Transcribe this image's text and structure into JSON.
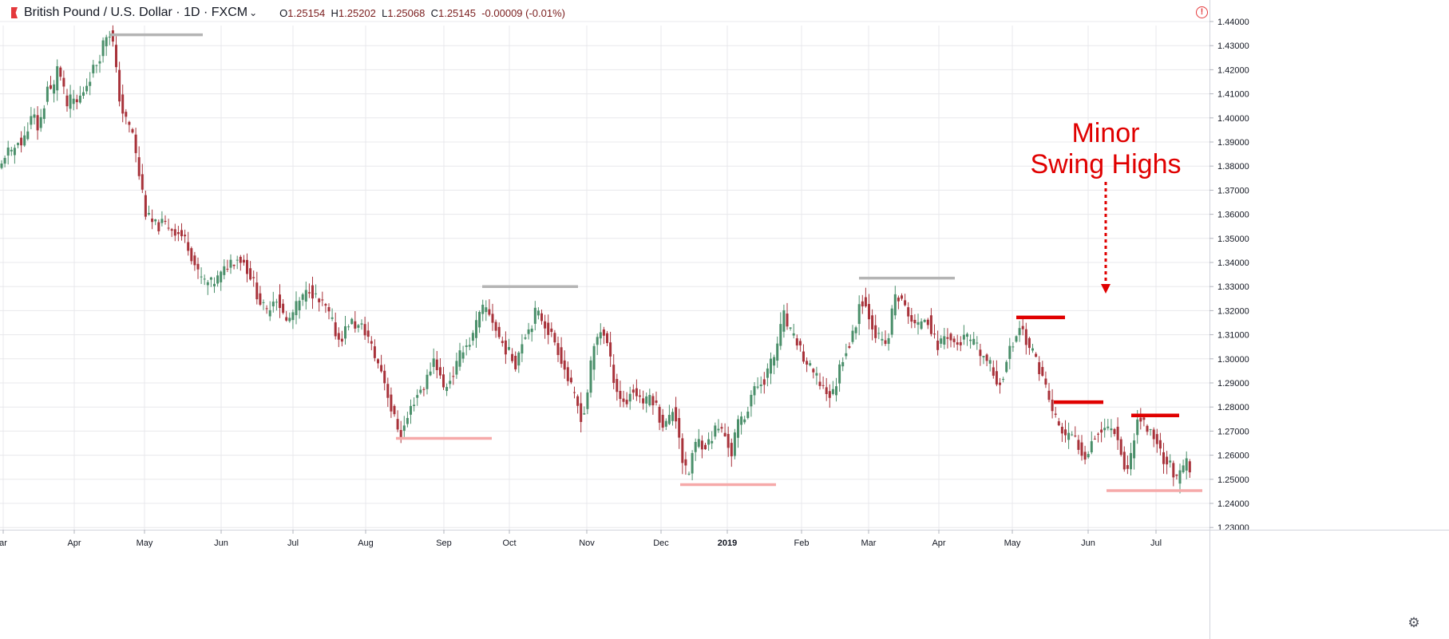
{
  "header": {
    "symbol": "British Pound / U.S. Dollar · 1D · FXCM",
    "open_label": "O",
    "open": "1.25154",
    "high_label": "H",
    "high": "1.25202",
    "low_label": "L",
    "low": "1.25068",
    "close_label": "C",
    "close": "1.25145",
    "change": "-0.00009 (-0.01%)"
  },
  "annotation": {
    "line1": "Minor",
    "line2": "Swing Highs"
  },
  "colors": {
    "up": "#4a8f6a",
    "down": "#a8323a",
    "grid": "#e8e8ec",
    "major_level": "#b4b4b4",
    "support_level": "#f6a9a9",
    "minor_high": "#e00000",
    "text": "#131722"
  },
  "chart_data": {
    "type": "candlestick",
    "title": "British Pound / U.S. Dollar · 1D · FXCM",
    "ylim": [
      1.226,
      1.445
    ],
    "y_ticks": [
      "1.23000",
      "1.24000",
      "1.25000",
      "1.26000",
      "1.27000",
      "1.28000",
      "1.29000",
      "1.30000",
      "1.31000",
      "1.32000",
      "1.33000",
      "1.34000",
      "1.35000",
      "1.36000",
      "1.37000",
      "1.38000",
      "1.39000",
      "1.40000",
      "1.41000",
      "1.42000",
      "1.43000",
      "1.44000"
    ],
    "x_ticks": [
      "ar",
      "Apr",
      "May",
      "Jun",
      "Jul",
      "Aug",
      "Sep",
      "Oct",
      "Nov",
      "Dec",
      "2019",
      "Feb",
      "Mar",
      "Apr",
      "May",
      "Jun",
      "Jul"
    ],
    "grid": true,
    "path_points": [
      [
        0,
        1.378
      ],
      [
        8,
        1.387
      ],
      [
        15,
        1.384
      ],
      [
        22,
        1.392
      ],
      [
        28,
        1.388
      ],
      [
        35,
        1.397
      ],
      [
        42,
        1.401
      ],
      [
        48,
        1.395
      ],
      [
        55,
        1.405
      ],
      [
        60,
        1.414
      ],
      [
        66,
        1.409
      ],
      [
        72,
        1.423
      ],
      [
        78,
        1.413
      ],
      [
        84,
        1.405
      ],
      [
        90,
        1.408
      ],
      [
        96,
        1.406
      ],
      [
        104,
        1.411
      ],
      [
        112,
        1.417
      ],
      [
        118,
        1.421
      ],
      [
        124,
        1.425
      ],
      [
        130,
        1.432
      ],
      [
        136,
        1.437
      ],
      [
        142,
        1.43
      ],
      [
        148,
        1.411
      ],
      [
        154,
        1.402
      ],
      [
        160,
        1.397
      ],
      [
        166,
        1.394
      ],
      [
        172,
        1.38
      ],
      [
        178,
        1.37
      ],
      [
        182,
        1.361
      ],
      [
        188,
        1.357
      ],
      [
        196,
        1.355
      ],
      [
        204,
        1.356
      ],
      [
        212,
        1.355
      ],
      [
        220,
        1.353
      ],
      [
        228,
        1.351
      ],
      [
        236,
        1.347
      ],
      [
        242,
        1.341
      ],
      [
        248,
        1.335
      ],
      [
        256,
        1.332
      ],
      [
        264,
        1.331
      ],
      [
        272,
        1.333
      ],
      [
        280,
        1.336
      ],
      [
        286,
        1.34
      ],
      [
        292,
        1.341
      ],
      [
        298,
        1.342
      ],
      [
        304,
        1.341
      ],
      [
        310,
        1.337
      ],
      [
        316,
        1.333
      ],
      [
        322,
        1.327
      ],
      [
        328,
        1.322
      ],
      [
        334,
        1.319
      ],
      [
        340,
        1.324
      ],
      [
        346,
        1.326
      ],
      [
        352,
        1.321
      ],
      [
        358,
        1.315
      ],
      [
        364,
        1.317
      ],
      [
        370,
        1.321
      ],
      [
        376,
        1.324
      ],
      [
        382,
        1.326
      ],
      [
        388,
        1.33
      ],
      [
        394,
        1.326
      ],
      [
        400,
        1.323
      ],
      [
        406,
        1.322
      ],
      [
        412,
        1.318
      ],
      [
        418,
        1.313
      ],
      [
        424,
        1.308
      ],
      [
        430,
        1.31
      ],
      [
        436,
        1.315
      ],
      [
        442,
        1.315
      ],
      [
        448,
        1.313
      ],
      [
        454,
        1.313
      ],
      [
        460,
        1.31
      ],
      [
        466,
        1.304
      ],
      [
        472,
        1.299
      ],
      [
        478,
        1.295
      ],
      [
        484,
        1.288
      ],
      [
        490,
        1.279
      ],
      [
        496,
        1.273
      ],
      [
        502,
        1.269
      ],
      [
        508,
        1.273
      ],
      [
        514,
        1.279
      ],
      [
        520,
        1.284
      ],
      [
        526,
        1.287
      ],
      [
        532,
        1.289
      ],
      [
        538,
        1.295
      ],
      [
        544,
        1.301
      ],
      [
        550,
        1.294
      ],
      [
        556,
        1.287
      ],
      [
        562,
        1.291
      ],
      [
        568,
        1.294
      ],
      [
        574,
        1.299
      ],
      [
        580,
        1.305
      ],
      [
        586,
        1.306
      ],
      [
        592,
        1.309
      ],
      [
        598,
        1.316
      ],
      [
        604,
        1.32
      ],
      [
        610,
        1.321
      ],
      [
        616,
        1.317
      ],
      [
        622,
        1.311
      ],
      [
        628,
        1.307
      ],
      [
        634,
        1.304
      ],
      [
        640,
        1.301
      ],
      [
        646,
        1.298
      ],
      [
        652,
        1.306
      ],
      [
        658,
        1.311
      ],
      [
        664,
        1.313
      ],
      [
        670,
        1.319
      ],
      [
        676,
        1.318
      ],
      [
        682,
        1.315
      ],
      [
        688,
        1.311
      ],
      [
        694,
        1.308
      ],
      [
        700,
        1.303
      ],
      [
        706,
        1.297
      ],
      [
        712,
        1.291
      ],
      [
        718,
        1.285
      ],
      [
        724,
        1.28
      ],
      [
        730,
        1.274
      ],
      [
        736,
        1.287
      ],
      [
        742,
        1.302
      ],
      [
        748,
        1.309
      ],
      [
        754,
        1.313
      ],
      [
        760,
        1.307
      ],
      [
        766,
        1.296
      ],
      [
        772,
        1.288
      ],
      [
        778,
        1.283
      ],
      [
        784,
        1.281
      ],
      [
        790,
        1.287
      ],
      [
        796,
        1.286
      ],
      [
        802,
        1.284
      ],
      [
        808,
        1.281
      ],
      [
        814,
        1.285
      ],
      [
        820,
        1.282
      ],
      [
        826,
        1.276
      ],
      [
        832,
        1.272
      ],
      [
        838,
        1.275
      ],
      [
        844,
        1.28
      ],
      [
        850,
        1.27
      ],
      [
        856,
        1.255
      ],
      [
        862,
        1.251
      ],
      [
        868,
        1.262
      ],
      [
        874,
        1.266
      ],
      [
        880,
        1.265
      ],
      [
        886,
        1.264
      ],
      [
        892,
        1.268
      ],
      [
        898,
        1.272
      ],
      [
        904,
        1.27
      ],
      [
        910,
        1.267
      ],
      [
        916,
        1.26
      ],
      [
        922,
        1.271
      ],
      [
        928,
        1.275
      ],
      [
        934,
        1.276
      ],
      [
        940,
        1.285
      ],
      [
        946,
        1.287
      ],
      [
        952,
        1.29
      ],
      [
        958,
        1.292
      ],
      [
        964,
        1.297
      ],
      [
        970,
        1.301
      ],
      [
        976,
        1.31
      ],
      [
        982,
        1.318
      ],
      [
        988,
        1.312
      ],
      [
        994,
        1.308
      ],
      [
        1000,
        1.307
      ],
      [
        1006,
        1.3
      ],
      [
        1012,
        1.297
      ],
      [
        1018,
        1.294
      ],
      [
        1024,
        1.291
      ],
      [
        1030,
        1.289
      ],
      [
        1036,
        1.286
      ],
      [
        1042,
        1.284
      ],
      [
        1048,
        1.291
      ],
      [
        1054,
        1.3
      ],
      [
        1060,
        1.304
      ],
      [
        1066,
        1.307
      ],
      [
        1072,
        1.315
      ],
      [
        1078,
        1.326
      ],
      [
        1084,
        1.322
      ],
      [
        1090,
        1.317
      ],
      [
        1096,
        1.311
      ],
      [
        1102,
        1.308
      ],
      [
        1108,
        1.305
      ],
      [
        1114,
        1.31
      ],
      [
        1120,
        1.327
      ],
      [
        1126,
        1.325
      ],
      [
        1132,
        1.322
      ],
      [
        1138,
        1.319
      ],
      [
        1144,
        1.314
      ],
      [
        1150,
        1.313
      ],
      [
        1156,
        1.318
      ],
      [
        1162,
        1.317
      ],
      [
        1168,
        1.31
      ],
      [
        1174,
        1.305
      ],
      [
        1180,
        1.308
      ],
      [
        1186,
        1.311
      ],
      [
        1192,
        1.307
      ],
      [
        1198,
        1.306
      ],
      [
        1204,
        1.307
      ],
      [
        1210,
        1.309
      ],
      [
        1216,
        1.307
      ],
      [
        1222,
        1.305
      ],
      [
        1228,
        1.302
      ],
      [
        1234,
        1.3
      ],
      [
        1240,
        1.297
      ],
      [
        1246,
        1.292
      ],
      [
        1252,
        1.29
      ],
      [
        1258,
        1.295
      ],
      [
        1264,
        1.303
      ],
      [
        1270,
        1.307
      ],
      [
        1276,
        1.314
      ],
      [
        1282,
        1.311
      ],
      [
        1288,
        1.305
      ],
      [
        1294,
        1.302
      ],
      [
        1300,
        1.298
      ],
      [
        1306,
        1.292
      ],
      [
        1312,
        1.286
      ],
      [
        1318,
        1.278
      ],
      [
        1324,
        1.274
      ],
      [
        1330,
        1.27
      ],
      [
        1336,
        1.267
      ],
      [
        1342,
        1.268
      ],
      [
        1348,
        1.266
      ],
      [
        1354,
        1.262
      ],
      [
        1360,
        1.26
      ],
      [
        1366,
        1.265
      ],
      [
        1372,
        1.269
      ],
      [
        1378,
        1.27
      ],
      [
        1384,
        1.271
      ],
      [
        1390,
        1.272
      ],
      [
        1396,
        1.271
      ],
      [
        1402,
        1.265
      ],
      [
        1408,
        1.255
      ],
      [
        1414,
        1.254
      ],
      [
        1420,
        1.268
      ],
      [
        1426,
        1.276
      ],
      [
        1432,
        1.274
      ],
      [
        1438,
        1.27
      ],
      [
        1444,
        1.269
      ],
      [
        1450,
        1.265
      ],
      [
        1456,
        1.259
      ],
      [
        1462,
        1.257
      ],
      [
        1468,
        1.255
      ],
      [
        1474,
        1.249
      ],
      [
        1480,
        1.253
      ],
      [
        1486,
        1.257
      ],
      [
        1492,
        1.252
      ]
    ],
    "major_levels": [
      {
        "x0": 138,
        "x1": 254,
        "price": 1.4345
      },
      {
        "x0": 604,
        "x1": 724,
        "price": 1.33
      },
      {
        "x0": 1076,
        "x1": 1196,
        "price": 1.3335
      }
    ],
    "support_levels": [
      {
        "x0": 496,
        "x1": 616,
        "price": 1.267
      },
      {
        "x0": 852,
        "x1": 972,
        "price": 1.2478
      },
      {
        "x0": 1386,
        "x1": 1506,
        "price": 1.2453
      }
    ],
    "minor_highs": [
      {
        "x0": 1273,
        "x1": 1334,
        "price": 1.3172
      },
      {
        "x0": 1320,
        "x1": 1382,
        "price": 1.282
      },
      {
        "x0": 1417,
        "x1": 1477,
        "price": 1.2765
      }
    ]
  }
}
